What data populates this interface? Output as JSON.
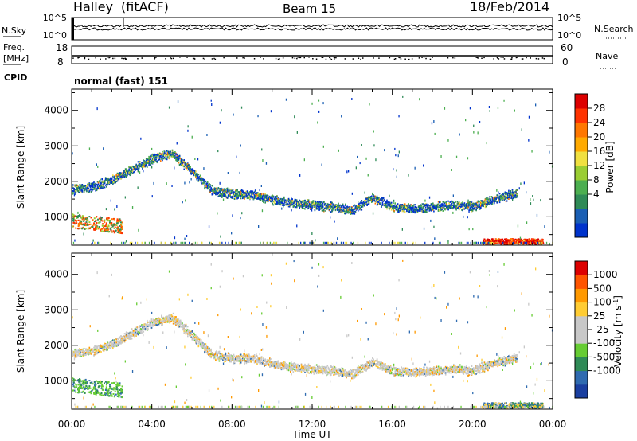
{
  "header": {
    "station": "Halley",
    "mode": "(fitACF)",
    "beam": "Beam 15",
    "date": "18/Feb/2014"
  },
  "top_panels": {
    "nsky_label": "N.Sky",
    "nsearch_label": "N.Search",
    "nsky_ticks": [
      "10^5",
      "10^0"
    ],
    "freq_label": "Freq.",
    "freq_unit": "[MHz]",
    "freq_ticks": [
      "18",
      "8"
    ],
    "nave_label": "Nave",
    "nave_ticks": [
      "60",
      "0"
    ],
    "cpid_label": "CPID",
    "cpid_value": "normal (fast) 151"
  },
  "chart_data": [
    {
      "type": "heatmap",
      "name": "power",
      "xlabel": "",
      "ylabel": "Slant Range [km]",
      "xlim": [
        0,
        24
      ],
      "ylim": [
        200,
        4600
      ],
      "yticks": [
        1000,
        2000,
        3000,
        4000
      ],
      "colorbar": {
        "label": "Power [dB]",
        "ticks": [
          "28",
          "24",
          "20",
          "16",
          "12",
          "8",
          "4"
        ],
        "colors": [
          "#0033cc",
          "#1a5fb4",
          "#2f8b57",
          "#4caf50",
          "#9acd32",
          "#f0e040",
          "#ffaa00",
          "#ff7700",
          "#ff3300",
          "#dd0000"
        ]
      },
      "echo_band": {
        "time_h": [
          0,
          1,
          2,
          3,
          4,
          5,
          6,
          7,
          8,
          9,
          10,
          11,
          12,
          13,
          14,
          15,
          16,
          17,
          18,
          19,
          20,
          21,
          22
        ],
        "range_km": [
          1800,
          1850,
          2050,
          2350,
          2650,
          2800,
          2300,
          1750,
          1650,
          1650,
          1500,
          1400,
          1350,
          1300,
          1200,
          1550,
          1300,
          1250,
          1300,
          1350,
          1300,
          1500,
          1650
        ]
      },
      "near_range_echo": {
        "time_h": [
          0,
          2.5
        ],
        "range_km": [
          700,
          1100
        ]
      },
      "low_range_echo": {
        "time_h": [
          20.5,
          23.5
        ],
        "range_km": [
          250,
          400
        ]
      }
    },
    {
      "type": "heatmap",
      "name": "velocity",
      "xlabel": "Time UT",
      "ylabel": "Slant Range [km]",
      "xlim": [
        0,
        24
      ],
      "ylim": [
        200,
        4600
      ],
      "yticks": [
        1000,
        2000,
        3000,
        4000
      ],
      "xticks": [
        "00:00",
        "04:00",
        "08:00",
        "12:00",
        "16:00",
        "20:00",
        "00:00"
      ],
      "colorbar": {
        "label": "Velocity [m s",
        "label_sup": "-1",
        "label_end": "]",
        "ticks": [
          "1000",
          "500",
          "100",
          "25",
          "-25",
          "-100",
          "-500",
          "-1000"
        ],
        "colors": [
          "#1a3fa0",
          "#2f6bb0",
          "#2f8b57",
          "#66cc33",
          "#c8c8c8",
          "#c8c8c8",
          "#ffcc33",
          "#ff9900",
          "#ff5500",
          "#dd0000"
        ]
      }
    }
  ]
}
